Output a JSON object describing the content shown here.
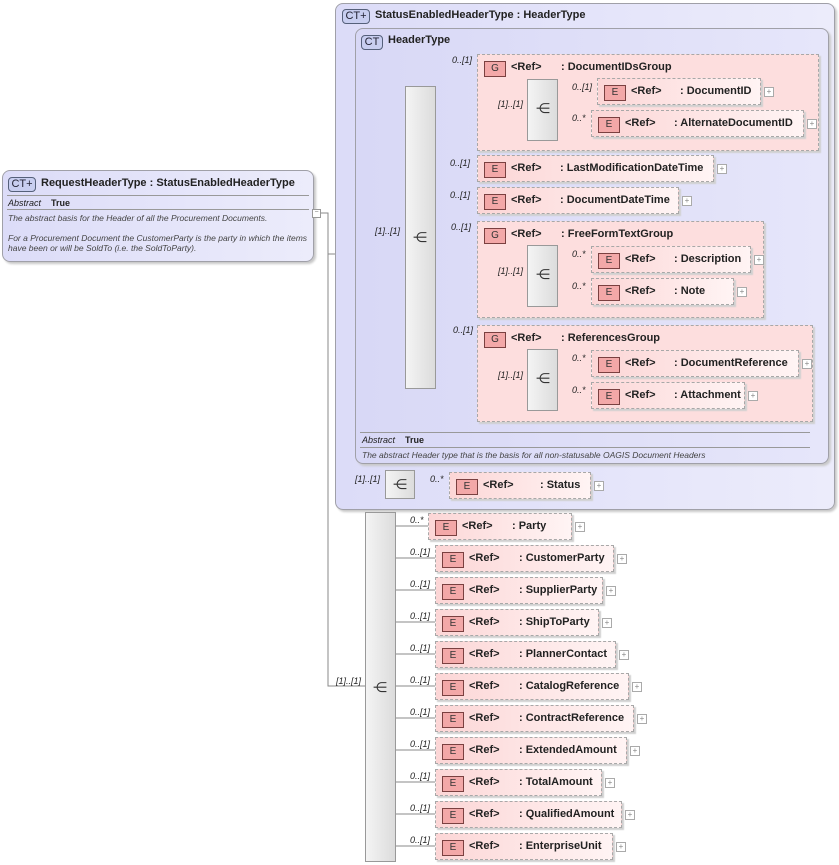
{
  "root": {
    "badge": "CT+",
    "title": "RequestHeaderType : StatusEnabledHeaderType",
    "abstract_label": "Abstract",
    "abstract_value": "True",
    "doc1": "The abstract basis for the Header of all the Procurement Documents.",
    "doc2": "For a Procurement Document the CustomerParty is the party in which the items have been or will be SoldTo (i.e. the SoldToParty)."
  },
  "status_enabled": {
    "badge": "CT+",
    "title": "StatusEnabledHeaderType : HeaderType",
    "seq_card": "[1]..[1]",
    "status": {
      "badge": "E",
      "ref": "<Ref>",
      "name": ": Status",
      "card": "0..*"
    }
  },
  "header_type": {
    "badge": "CT",
    "title": "HeaderType",
    "seq_card": "[1]..[1]",
    "abstract_label": "Abstract",
    "abstract_value": "True",
    "doc": "The abstract Header type that is the basis for all non-statusable OAGIS Document Headers",
    "items": [
      {
        "kind": "group",
        "badge": "G",
        "ref": "<Ref>",
        "name": ": DocumentIDsGroup",
        "card": "0..[1]",
        "seq_card": "[1]..[1]",
        "children": [
          {
            "badge": "E",
            "ref": "<Ref>",
            "name": ": DocumentID",
            "card": "0..[1]"
          },
          {
            "badge": "E",
            "ref": "<Ref>",
            "name": ": AlternateDocumentID",
            "card": "0..*"
          }
        ]
      },
      {
        "kind": "element",
        "badge": "E",
        "ref": "<Ref>",
        "name": ": LastModificationDateTime",
        "card": "0..[1]"
      },
      {
        "kind": "element",
        "badge": "E",
        "ref": "<Ref>",
        "name": ": DocumentDateTime",
        "card": "0..[1]"
      },
      {
        "kind": "group",
        "badge": "G",
        "ref": "<Ref>",
        "name": ": FreeFormTextGroup",
        "card": "0..[1]",
        "seq_card": "[1]..[1]",
        "children": [
          {
            "badge": "E",
            "ref": "<Ref>",
            "name": ": Description",
            "card": "0..*"
          },
          {
            "badge": "E",
            "ref": "<Ref>",
            "name": ": Note",
            "card": "0..*"
          }
        ]
      },
      {
        "kind": "group",
        "badge": "G",
        "ref": "<Ref>",
        "name": ": ReferencesGroup",
        "card": "0..[1]",
        "seq_card": "[1]..[1]",
        "children": [
          {
            "badge": "E",
            "ref": "<Ref>",
            "name": ": DocumentReference",
            "card": "0..*"
          },
          {
            "badge": "E",
            "ref": "<Ref>",
            "name": ": Attachment",
            "card": "0..*"
          }
        ]
      }
    ]
  },
  "request_sequence": {
    "seq_card": "[1]..[1]",
    "items": [
      {
        "badge": "E",
        "ref": "<Ref>",
        "name": ": Party",
        "card": "0..*"
      },
      {
        "badge": "E",
        "ref": "<Ref>",
        "name": ": CustomerParty",
        "card": "0..[1]"
      },
      {
        "badge": "E",
        "ref": "<Ref>",
        "name": ": SupplierParty",
        "card": "0..[1]"
      },
      {
        "badge": "E",
        "ref": "<Ref>",
        "name": ": ShipToParty",
        "card": "0..[1]"
      },
      {
        "badge": "E",
        "ref": "<Ref>",
        "name": ": PlannerContact",
        "card": "0..[1]"
      },
      {
        "badge": "E",
        "ref": "<Ref>",
        "name": ": CatalogReference",
        "card": "0..[1]"
      },
      {
        "badge": "E",
        "ref": "<Ref>",
        "name": ": ContractReference",
        "card": "0..[1]"
      },
      {
        "badge": "E",
        "ref": "<Ref>",
        "name": ": ExtendedAmount",
        "card": "0..[1]"
      },
      {
        "badge": "E",
        "ref": "<Ref>",
        "name": ": TotalAmount",
        "card": "0..[1]"
      },
      {
        "badge": "E",
        "ref": "<Ref>",
        "name": ": QualifiedAmount",
        "card": "0..[1]"
      },
      {
        "badge": "E",
        "ref": "<Ref>",
        "name": ": EnterpriseUnit",
        "card": "0..[1]"
      }
    ]
  },
  "icons": {
    "sequence": "sequence-icon",
    "expand": "expand-plus-icon"
  }
}
